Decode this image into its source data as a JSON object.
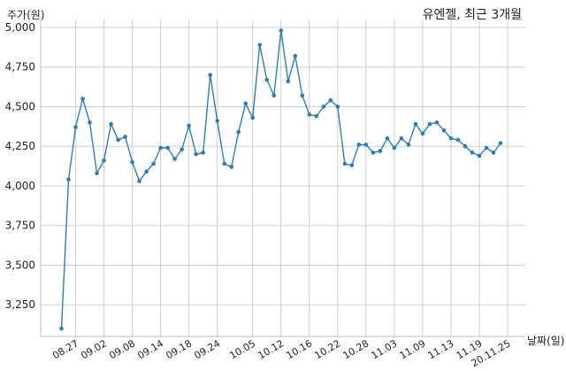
{
  "chart_data": {
    "type": "line",
    "title": "유엔젤, 최근 3개월",
    "ylabel": "주가(원)",
    "xlabel": "날짜(일)",
    "ylim": [
      3050,
      5050
    ],
    "grid": true,
    "legend": "none",
    "line_color": "#2e7db5",
    "y_ticks": [
      3250,
      3500,
      3750,
      4000,
      4250,
      4500,
      4750,
      5000
    ],
    "y_tick_labels": [
      "3,250",
      "3,500",
      "3,750",
      "4,000",
      "4,250",
      "4,500",
      "4,750",
      "5,000"
    ],
    "x_tick_labels": [
      {
        "index": 2,
        "label": "08.27"
      },
      {
        "index": 6,
        "label": "09.02"
      },
      {
        "index": 10,
        "label": "09.08"
      },
      {
        "index": 14,
        "label": "09.14"
      },
      {
        "index": 18,
        "label": "09.18"
      },
      {
        "index": 22,
        "label": "09.24"
      },
      {
        "index": 27,
        "label": "10.05"
      },
      {
        "index": 31,
        "label": "10.12"
      },
      {
        "index": 35,
        "label": "10.16"
      },
      {
        "index": 39,
        "label": "10.22"
      },
      {
        "index": 43,
        "label": "10.28"
      },
      {
        "index": 47,
        "label": "11.03"
      },
      {
        "index": 51,
        "label": "11.09"
      },
      {
        "index": 55,
        "label": "11.13"
      },
      {
        "index": 59,
        "label": "11.19"
      },
      {
        "index": 63,
        "label": "20.11.25"
      }
    ],
    "series": [
      {
        "values": [
          3100,
          4040,
          4370,
          4550,
          4400,
          4080,
          4160,
          4390,
          4290,
          4310,
          4150,
          4030,
          4090,
          4140,
          4240,
          4240,
          4170,
          4230,
          4380,
          4200,
          4210,
          4700,
          4410,
          4140,
          4120,
          4340,
          4520,
          4430,
          4890,
          4670,
          4570,
          4980,
          4660,
          4820,
          4570,
          4450,
          4440,
          4500,
          4540,
          4500,
          4140,
          4130,
          4260,
          4260,
          4210,
          4220,
          4300,
          4240,
          4300,
          4260,
          4390,
          4330,
          4390,
          4400,
          4350,
          4300,
          4290,
          4250,
          4210,
          4190,
          4240,
          4210,
          4270
        ]
      }
    ]
  }
}
